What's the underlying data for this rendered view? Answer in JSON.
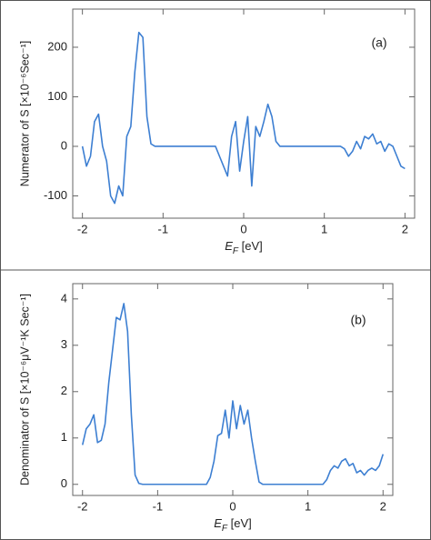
{
  "chart_data": [
    {
      "type": "line",
      "annotation": "(a)",
      "y_label": "Numerator of S [×10⁻⁶Sec⁻¹]",
      "x_label_symbol": "E",
      "x_label_subscript": "F",
      "x_label_unit": " [eV]",
      "xlim": [
        -2.12,
        2.12
      ],
      "ylim": [
        -145,
        277
      ],
      "xticks": [
        -2,
        -1,
        0,
        1,
        2
      ],
      "yticks": [
        -100,
        0,
        100,
        200
      ],
      "x": [
        -2.0,
        -1.95,
        -1.9,
        -1.85,
        -1.8,
        -1.75,
        -1.7,
        -1.65,
        -1.6,
        -1.55,
        -1.5,
        -1.45,
        -1.4,
        -1.35,
        -1.3,
        -1.25,
        -1.2,
        -1.15,
        -1.1,
        -1.05,
        -1.0,
        -0.95,
        -0.9,
        -0.85,
        -0.8,
        -0.75,
        -0.7,
        -0.65,
        -0.6,
        -0.55,
        -0.5,
        -0.45,
        -0.4,
        -0.35,
        -0.3,
        -0.25,
        -0.2,
        -0.15,
        -0.1,
        -0.05,
        0,
        0.05,
        0.1,
        0.15,
        0.2,
        0.25,
        0.3,
        0.35,
        0.4,
        0.45,
        0.5,
        0.55,
        0.6,
        0.65,
        0.7,
        0.75,
        0.8,
        0.85,
        0.9,
        0.95,
        1.0,
        1.05,
        1.1,
        1.15,
        1.2,
        1.25,
        1.3,
        1.35,
        1.4,
        1.45,
        1.5,
        1.55,
        1.6,
        1.65,
        1.7,
        1.75,
        1.8,
        1.85,
        1.9,
        1.95,
        2.0
      ],
      "series": [
        {
          "name": "Numerator",
          "color": "#3d7fd2",
          "values": [
            0,
            -40,
            -20,
            50,
            65,
            0,
            -30,
            -100,
            -115,
            -80,
            -100,
            20,
            40,
            150,
            230,
            220,
            60,
            5,
            0,
            0,
            0,
            0,
            0,
            0,
            0,
            0,
            0,
            0,
            0,
            0,
            0,
            0,
            0,
            0,
            -20,
            -40,
            -60,
            20,
            50,
            -50,
            10,
            60,
            -80,
            40,
            20,
            50,
            85,
            60,
            10,
            0,
            0,
            0,
            0,
            0,
            0,
            0,
            0,
            0,
            0,
            0,
            0,
            0,
            0,
            0,
            0,
            -5,
            -20,
            -10,
            10,
            -5,
            20,
            15,
            25,
            5,
            10,
            -10,
            5,
            0,
            -20,
            -40,
            -45
          ]
        }
      ]
    },
    {
      "type": "line",
      "annotation": "(b)",
      "y_label": "Denominator of S [×10⁻⁶μV⁻¹K Sec⁻¹]",
      "x_label_symbol": "E",
      "x_label_subscript": "F",
      "x_label_unit": " [eV]",
      "xlim": [
        -2.13,
        2.13
      ],
      "ylim": [
        -0.24,
        4.33
      ],
      "xticks": [
        -2,
        -1,
        0,
        1,
        2
      ],
      "yticks": [
        0,
        1,
        2,
        3,
        4
      ],
      "x": [
        -2.0,
        -1.95,
        -1.9,
        -1.85,
        -1.8,
        -1.75,
        -1.7,
        -1.65,
        -1.6,
        -1.55,
        -1.5,
        -1.45,
        -1.4,
        -1.35,
        -1.3,
        -1.25,
        -1.2,
        -1.15,
        -1.1,
        -1.05,
        -1.0,
        -0.95,
        -0.9,
        -0.85,
        -0.8,
        -0.75,
        -0.7,
        -0.65,
        -0.6,
        -0.55,
        -0.5,
        -0.45,
        -0.4,
        -0.35,
        -0.3,
        -0.25,
        -0.2,
        -0.15,
        -0.1,
        -0.05,
        0,
        0.05,
        0.1,
        0.15,
        0.2,
        0.25,
        0.3,
        0.35,
        0.4,
        0.45,
        0.5,
        0.55,
        0.6,
        0.65,
        0.7,
        0.75,
        0.8,
        0.85,
        0.9,
        0.95,
        1.0,
        1.05,
        1.1,
        1.15,
        1.2,
        1.25,
        1.3,
        1.35,
        1.4,
        1.45,
        1.5,
        1.55,
        1.6,
        1.65,
        1.7,
        1.75,
        1.8,
        1.85,
        1.9,
        1.95,
        2.0
      ],
      "series": [
        {
          "name": "Denominator",
          "color": "#3d7fd2",
          "values": [
            0.85,
            1.2,
            1.3,
            1.5,
            0.9,
            0.95,
            1.3,
            2.2,
            2.9,
            3.6,
            3.55,
            3.9,
            3.3,
            1.5,
            0.2,
            0.02,
            0,
            0,
            0,
            0,
            0,
            0,
            0,
            0,
            0,
            0,
            0,
            0,
            0,
            0,
            0,
            0,
            0,
            0,
            0.15,
            0.5,
            1.05,
            1.1,
            1.6,
            1.0,
            1.8,
            1.2,
            1.7,
            1.3,
            1.6,
            1.0,
            0.5,
            0.05,
            0,
            0,
            0,
            0,
            0,
            0,
            0,
            0,
            0,
            0,
            0,
            0,
            0,
            0,
            0,
            0,
            0,
            0.1,
            0.3,
            0.4,
            0.35,
            0.5,
            0.55,
            0.4,
            0.45,
            0.25,
            0.3,
            0.2,
            0.3,
            0.35,
            0.3,
            0.4,
            0.65
          ]
        }
      ]
    }
  ]
}
